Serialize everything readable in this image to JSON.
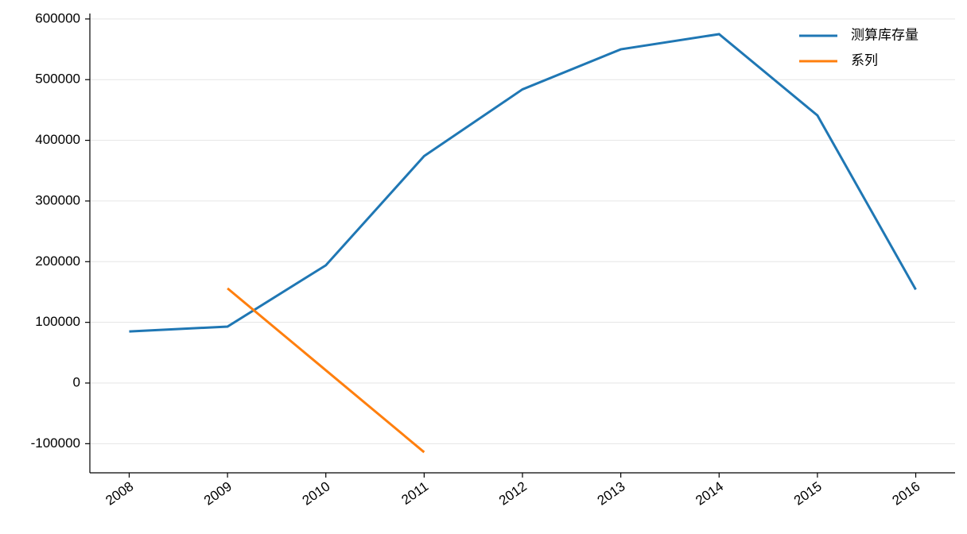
{
  "chart_data": {
    "type": "line",
    "x": [
      2008,
      2009,
      2010,
      2011,
      2012,
      2013,
      2014,
      2015,
      2016
    ],
    "series": [
      {
        "name": "测算库存量",
        "color": "#1f77b4",
        "values": [
          85000,
          93000,
          194000,
          374000,
          484000,
          550000,
          575000,
          441000,
          154000
        ]
      },
      {
        "name": "系列",
        "color": "#ff7f0e",
        "values": [
          null,
          156000,
          21000,
          -114000,
          null,
          null,
          null,
          null,
          null
        ]
      }
    ],
    "xlim": [
      2007.6,
      2016.4
    ],
    "xticks": [
      2008,
      2009,
      2010,
      2011,
      2012,
      2013,
      2014,
      2015,
      2016
    ],
    "ylim": [
      -148000,
      609000
    ],
    "yticks": [
      -100000,
      0,
      100000,
      200000,
      300000,
      400000,
      500000,
      600000
    ],
    "grid": true,
    "legend": "upper right"
  }
}
